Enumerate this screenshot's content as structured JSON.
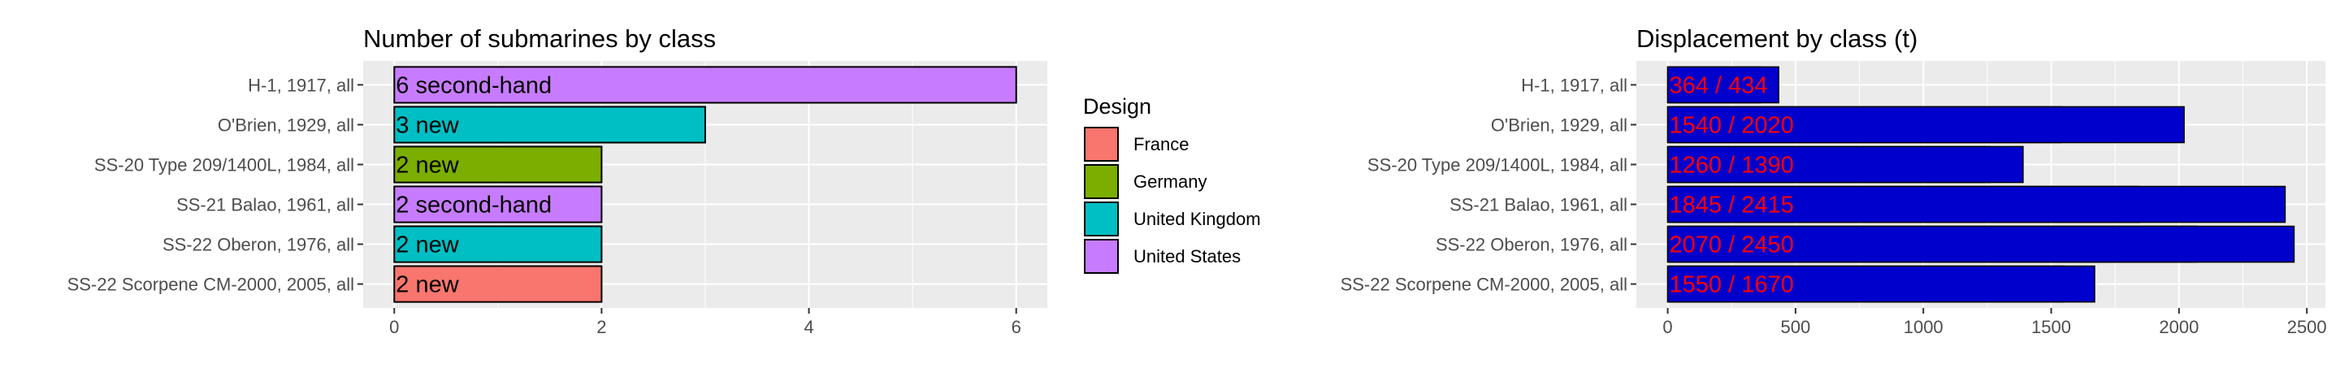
{
  "chart_data": [
    {
      "type": "bar",
      "orientation": "horizontal",
      "title": "Number of submarines by class",
      "categories": [
        "H-1, 1917, all",
        "O'Brien, 1929, all",
        "SS-20 Type 209/1400L, 1984, all",
        "SS-21 Balao, 1961, all",
        "SS-22 Oberon, 1976, all",
        "SS-22 Scorpene CM-2000, 2005, all"
      ],
      "values": [
        6,
        3,
        2,
        2,
        2,
        2
      ],
      "bar_labels": [
        "6 second-hand",
        "3 new",
        "2 new",
        "2 second-hand",
        "2 new",
        "2 new"
      ],
      "fill_group": [
        "United States",
        "United Kingdom",
        "Germany",
        "United States",
        "United Kingdom",
        "France"
      ],
      "xticks": [
        0,
        2,
        4,
        6
      ],
      "xlim": [
        -0.3,
        6.3
      ],
      "grid": true,
      "legend": {
        "title": "Design",
        "placement": "right",
        "entries": [
          {
            "label": "France",
            "color": "#F8766D"
          },
          {
            "label": "Germany",
            "color": "#7CAE00"
          },
          {
            "label": "United Kingdom",
            "color": "#00BFC4"
          },
          {
            "label": "United States",
            "color": "#C77CFF"
          }
        ]
      }
    },
    {
      "type": "bar",
      "orientation": "horizontal",
      "title": "Displacement by class (t)",
      "categories": [
        "H-1, 1917, all",
        "O'Brien, 1929, all",
        "SS-20 Type 209/1400L, 1984, all",
        "SS-21 Balao, 1961, all",
        "SS-22 Oberon, 1976, all",
        "SS-22 Scorpene CM-2000, 2005, all"
      ],
      "series": [
        {
          "values": [
            364,
            1540,
            1260,
            1845,
            2070,
            1550
          ]
        },
        {
          "values": [
            434,
            2020,
            1390,
            2415,
            2450,
            1670
          ]
        }
      ],
      "bar_labels": [
        "364 / 434",
        "1540 / 2020",
        "1260 / 1390",
        "1845 / 2415",
        "2070 / 2450",
        "1550 / 1670"
      ],
      "bar_color": "#0000CD",
      "label_color": "#FF0000",
      "xticks": [
        0,
        500,
        1000,
        1500,
        2000,
        2500
      ],
      "xlim": [
        -122.5,
        2572.5
      ],
      "grid": true
    }
  ]
}
